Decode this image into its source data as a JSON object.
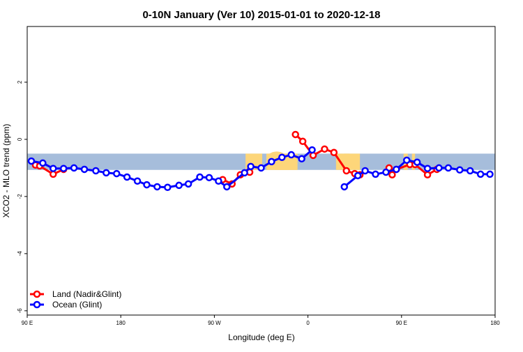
{
  "chart_data": {
    "type": "line",
    "title": "0-10N January (Ver 10)   2015-01-01 to 2020-12-18",
    "xlabel": "Longitude (deg E)",
    "ylabel": "XCO2 - MLO trend (ppm)",
    "xlim": [
      90,
      540
    ],
    "ylim": [
      -6.15,
      3.95
    ],
    "xticks": [
      {
        "value": 90,
        "label": "90 E"
      },
      {
        "value": 180,
        "label": "180"
      },
      {
        "value": 270,
        "label": "90 W"
      },
      {
        "value": 360,
        "label": "0"
      },
      {
        "value": 450,
        "label": "90 E"
      },
      {
        "value": 540,
        "label": "180"
      }
    ],
    "yticks": [
      {
        "value": 2,
        "label": "2"
      },
      {
        "value": 0,
        "label": "0"
      },
      {
        "value": -2,
        "label": "-2"
      },
      {
        "value": -4,
        "label": "-4"
      },
      {
        "value": -6,
        "label": "-6"
      }
    ],
    "grid": false,
    "legend_position": "bottom-left",
    "land_band": [
      -0.5,
      -1.07
    ],
    "colors": {
      "land": "#ff0000",
      "ocean": "#0000ff",
      "band": "#a6bddb",
      "land_mass": "#fdd67a"
    },
    "series": [
      {
        "name": "Land (Nadir&Glint)",
        "color": "#ff0000",
        "segments": [
          [
            [
              98,
              -0.9
            ],
            [
              102,
              -0.93
            ],
            [
              115,
              -1.22
            ],
            [
              125,
              -1.05
            ]
          ],
          [
            [
              278,
              -1.41
            ],
            [
              287,
              -1.56
            ],
            [
              295,
              -1.24
            ],
            [
              304,
              -1.15
            ]
          ],
          [
            [
              348,
              0.17
            ],
            [
              355,
              -0.07
            ],
            [
              365,
              -0.56
            ],
            [
              376,
              -0.34
            ],
            [
              385,
              -0.46
            ],
            [
              397,
              -1.1
            ],
            [
              405,
              -1.2
            ],
            [
              410,
              -1.24
            ]
          ],
          [
            [
              438,
              -1.0
            ],
            [
              441,
              -1.24
            ],
            [
              445,
              -1.05
            ],
            [
              458,
              -0.88
            ],
            [
              463,
              -0.88
            ],
            [
              475,
              -1.24
            ],
            [
              484,
              -1.05
            ]
          ]
        ]
      },
      {
        "name": "Ocean (Glint)",
        "color": "#0000ff",
        "segments": [
          [
            [
              94,
              -0.76
            ],
            [
              105,
              -0.83
            ],
            [
              115,
              -1.02
            ],
            [
              125,
              -1.02
            ],
            [
              135,
              -1.0
            ],
            [
              145,
              -1.05
            ],
            [
              156,
              -1.1
            ],
            [
              166,
              -1.17
            ],
            [
              176,
              -1.2
            ],
            [
              186,
              -1.32
            ],
            [
              196,
              -1.46
            ],
            [
              205,
              -1.59
            ],
            [
              215,
              -1.66
            ],
            [
              225,
              -1.68
            ],
            [
              236,
              -1.61
            ],
            [
              245,
              -1.56
            ],
            [
              256,
              -1.32
            ],
            [
              265,
              -1.34
            ],
            [
              274,
              -1.46
            ],
            [
              282,
              -1.66
            ],
            [
              299,
              -1.17
            ],
            [
              305,
              -0.95
            ],
            [
              315,
              -1.0
            ],
            [
              325,
              -0.78
            ],
            [
              335,
              -0.63
            ],
            [
              344,
              -0.54
            ],
            [
              354,
              -0.68
            ],
            [
              364,
              -0.37
            ]
          ],
          [
            [
              395,
              -1.66
            ],
            [
              408,
              -1.27
            ],
            [
              415,
              -1.1
            ],
            [
              425,
              -1.22
            ],
            [
              435,
              -1.15
            ],
            [
              445,
              -1.05
            ],
            [
              455,
              -0.73
            ],
            [
              465,
              -0.8
            ],
            [
              475,
              -1.02
            ],
            [
              486,
              -1.0
            ],
            [
              495,
              -1.0
            ],
            [
              506,
              -1.07
            ],
            [
              516,
              -1.1
            ],
            [
              526,
              -1.22
            ],
            [
              535,
              -1.22
            ]
          ]
        ]
      }
    ]
  }
}
